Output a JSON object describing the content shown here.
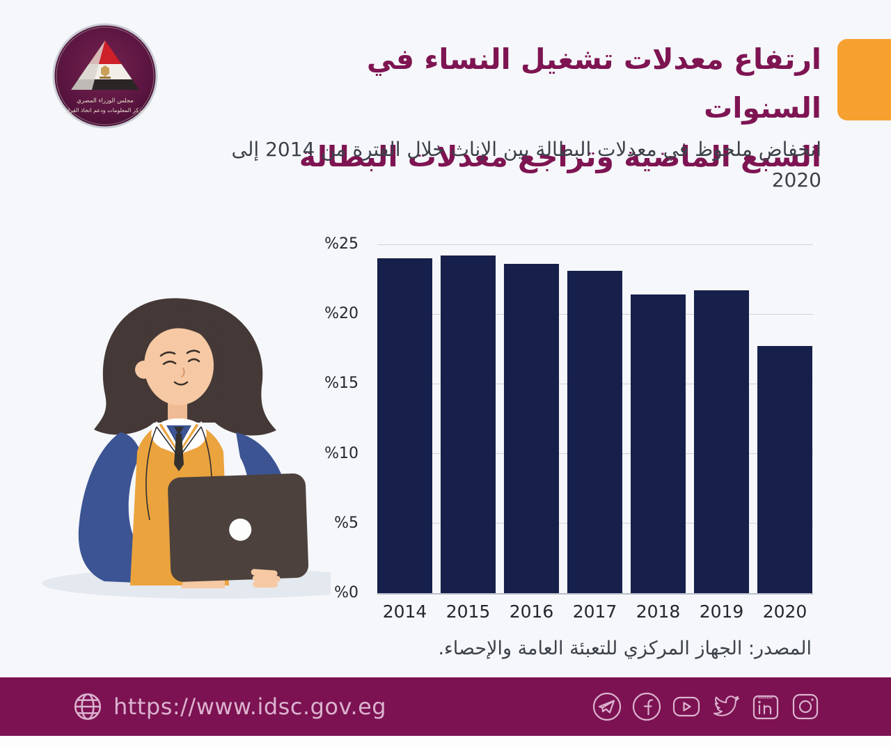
{
  "header": {
    "title_line1": "ارتفاع معدلات تشغيل النساء في السنوات",
    "title_line2": "السبع الماضية وتراجع معدلات البطالة",
    "subtitle_line1": "انخفاض ملحوظ في معدلات البطالة بين الإناث خلال الفترة من 2014 إلى",
    "subtitle_line2": "2020",
    "title_color": "#7e1452",
    "accent_color": "#f6a12f"
  },
  "logo": {
    "org_line1": "مجلس الوزراء المصري",
    "org_line2": "مركز المعلومات ودعم اتخاذ القرار"
  },
  "chart_data": {
    "type": "bar",
    "categories": [
      "2014",
      "2015",
      "2016",
      "2017",
      "2018",
      "2019",
      "2020"
    ],
    "values": [
      24.0,
      24.2,
      23.6,
      23.1,
      21.4,
      21.7,
      17.7
    ],
    "unit": "%",
    "title": "",
    "xlabel": "",
    "ylabel": "",
    "ylim": [
      0,
      25
    ],
    "ytick_interval": 5,
    "ytick_labels": [
      "%0",
      "%5",
      "%10",
      "%15",
      "%20",
      "%25"
    ],
    "grid": true,
    "legend": "none",
    "bar_color": "#16204a"
  },
  "source": {
    "text": "المصدر: الجهاز المركزي للتعبئة العامة والإحصاء."
  },
  "footer": {
    "url": "https://www.idsc.gov.eg",
    "bg_color": "#7c1252",
    "link_color": "#dcb3cf",
    "icons": [
      "globe-icon",
      "telegram-icon",
      "facebook-icon",
      "youtube-icon",
      "twitter-icon",
      "linkedin-icon",
      "instagram-icon"
    ]
  }
}
